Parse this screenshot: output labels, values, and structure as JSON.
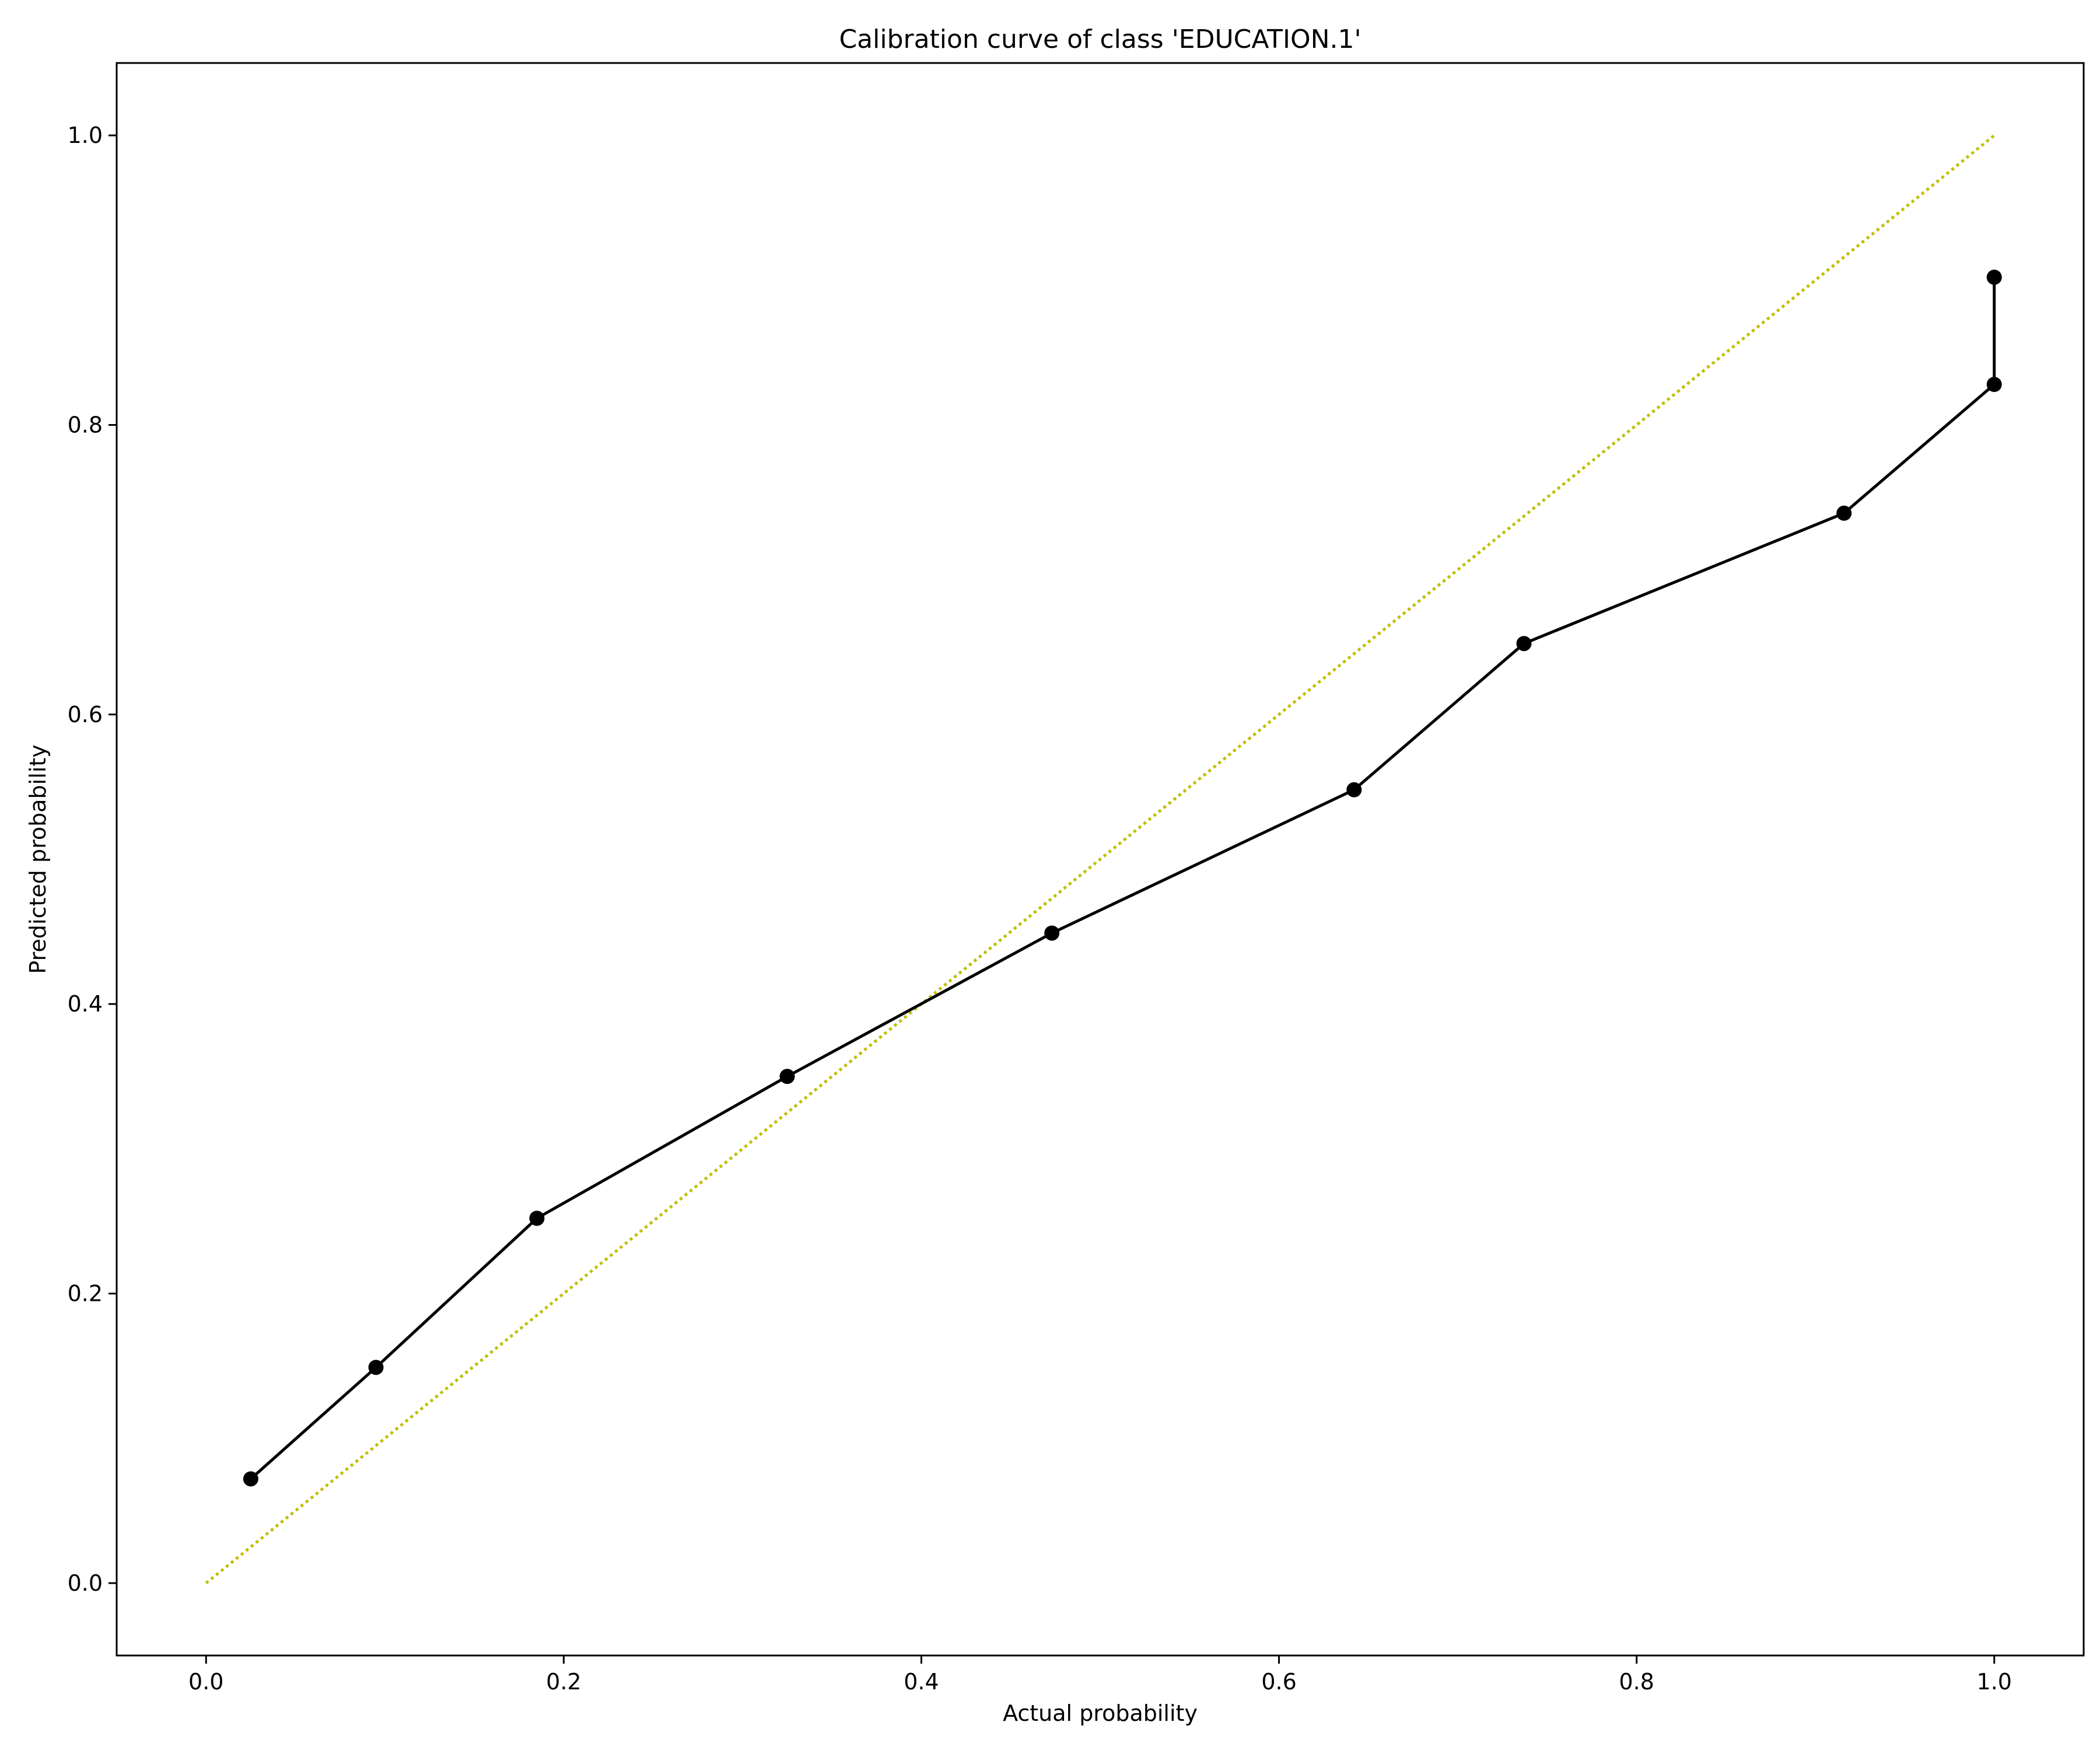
{
  "chart_data": {
    "type": "line",
    "title": "Calibration curve of class 'EDUCATION.1'",
    "xlabel": "Actual probability",
    "ylabel": "Predicted probability",
    "xlim": [
      -0.05,
      1.05
    ],
    "ylim": [
      -0.05,
      1.05
    ],
    "xticks": [
      0.0,
      0.2,
      0.4,
      0.6,
      0.8,
      1.0
    ],
    "xtick_labels": [
      "0.0",
      "0.2",
      "0.4",
      "0.6",
      "0.8",
      "1.0"
    ],
    "yticks": [
      0.0,
      0.2,
      0.4,
      0.6,
      0.8,
      1.0
    ],
    "ytick_labels": [
      "0.0",
      "0.2",
      "0.4",
      "0.6",
      "0.8",
      "1.0"
    ],
    "grid": false,
    "series": [
      {
        "style": "solid line with circle markers",
        "color": "#000000",
        "points": [
          {
            "x": 0.025,
            "y": 0.072
          },
          {
            "x": 0.095,
            "y": 0.149
          },
          {
            "x": 0.185,
            "y": 0.252
          },
          {
            "x": 0.325,
            "y": 0.35
          },
          {
            "x": 0.473,
            "y": 0.449
          },
          {
            "x": 0.642,
            "y": 0.548
          },
          {
            "x": 0.737,
            "y": 0.649
          },
          {
            "x": 0.916,
            "y": 0.739
          },
          {
            "x": 1.0,
            "y": 0.828
          },
          {
            "x": 1.0,
            "y": 0.902
          }
        ]
      },
      {
        "style": "dotted reference line",
        "color": "#bfbf00",
        "points": [
          {
            "x": 0.0,
            "y": 0.0
          },
          {
            "x": 1.0,
            "y": 1.0
          }
        ]
      }
    ]
  }
}
